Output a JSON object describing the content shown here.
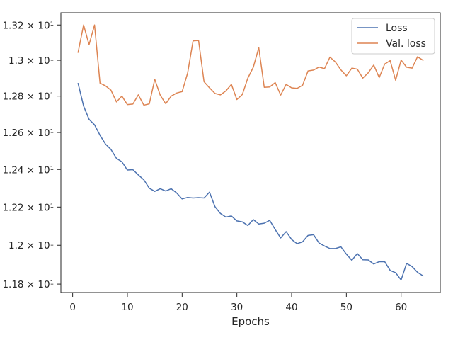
{
  "chart_data": {
    "type": "line",
    "title": "",
    "xlabel": "Epochs",
    "ylabel": "",
    "xlim": [
      -2.15,
      67.15
    ],
    "ylim": [
      11.757,
      13.27
    ],
    "yscale": "log",
    "grid": false,
    "legend_position": "top-right",
    "x_ticks": [
      0,
      10,
      20,
      30,
      40,
      50,
      60
    ],
    "x_tick_labels": [
      "0",
      "10",
      "20",
      "30",
      "40",
      "50",
      "60"
    ],
    "y_ticks": [
      11.8,
      12.0,
      12.2,
      12.4,
      12.6,
      12.8,
      13.0,
      13.2
    ],
    "y_tick_labels": [
      "1.18 × 10¹",
      "1.2 × 10¹",
      "1.22 × 10¹",
      "1.24 × 10¹",
      "1.26 × 10¹",
      "1.28 × 10¹",
      "1.3 × 10¹",
      "1.32 × 10¹"
    ],
    "x": [
      1,
      2,
      3,
      4,
      5,
      6,
      7,
      8,
      9,
      10,
      11,
      12,
      13,
      14,
      15,
      16,
      17,
      18,
      19,
      20,
      21,
      22,
      23,
      24,
      25,
      26,
      27,
      28,
      29,
      30,
      31,
      32,
      33,
      34,
      35,
      36,
      37,
      38,
      39,
      40,
      41,
      42,
      43,
      44,
      45,
      46,
      47,
      48,
      49,
      50,
      51,
      52,
      53,
      54,
      55,
      56,
      57,
      58,
      59,
      60,
      61,
      62,
      63,
      64
    ],
    "series": [
      {
        "name": "Loss",
        "color": "#4c72b0",
        "values": [
          12.87,
          12.745,
          12.672,
          12.642,
          12.585,
          12.537,
          12.508,
          12.46,
          12.441,
          12.397,
          12.399,
          12.371,
          12.345,
          12.3,
          12.283,
          12.297,
          12.285,
          12.297,
          12.275,
          12.243,
          12.251,
          12.248,
          12.25,
          12.248,
          12.279,
          12.202,
          12.166,
          12.147,
          12.153,
          12.127,
          12.122,
          12.103,
          12.134,
          12.111,
          12.115,
          12.13,
          12.082,
          12.038,
          12.071,
          12.03,
          12.008,
          12.018,
          12.051,
          12.055,
          12.012,
          11.996,
          11.983,
          11.983,
          11.992,
          11.954,
          11.922,
          11.957,
          11.925,
          11.924,
          11.903,
          11.915,
          11.915,
          11.87,
          11.858,
          11.821,
          11.906,
          11.89,
          11.86,
          11.842
        ]
      },
      {
        "name": "Val. loss",
        "color": "#dd8452",
        "values": [
          13.045,
          13.2,
          13.088,
          13.2,
          12.872,
          12.857,
          12.833,
          12.768,
          12.8,
          12.753,
          12.756,
          12.807,
          12.75,
          12.757,
          12.893,
          12.805,
          12.758,
          12.8,
          12.817,
          12.825,
          12.928,
          13.11,
          13.112,
          12.88,
          12.846,
          12.815,
          12.807,
          12.829,
          12.865,
          12.781,
          12.809,
          12.9,
          12.961,
          13.071,
          12.849,
          12.851,
          12.875,
          12.806,
          12.865,
          12.846,
          12.843,
          12.86,
          12.94,
          12.945,
          12.962,
          12.953,
          13.018,
          12.99,
          12.946,
          12.913,
          12.956,
          12.95,
          12.9,
          12.93,
          12.973,
          12.903,
          12.979,
          12.998,
          12.888,
          13.001,
          12.961,
          12.956,
          13.02,
          13.0
        ]
      }
    ]
  }
}
